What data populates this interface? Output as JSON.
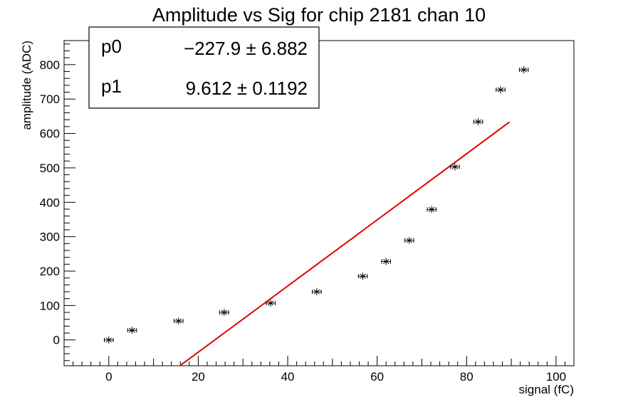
{
  "chart_data": {
    "type": "scatter",
    "title": "Amplitude vs Sig for chip 2181 chan 10",
    "xlabel": "signal (fC)",
    "ylabel": "amplitude (ADC)",
    "xlim": [
      -10,
      104
    ],
    "ylim": [
      -75,
      870
    ],
    "xticks": [
      0,
      20,
      40,
      60,
      80,
      100
    ],
    "yticks": [
      0,
      100,
      200,
      300,
      400,
      500,
      600,
      700,
      800
    ],
    "grid": false,
    "series": [
      {
        "points": [
          {
            "x": 0,
            "y": 0,
            "xerr": 1.0
          },
          {
            "x": 5.2,
            "y": 28,
            "xerr": 1.0
          },
          {
            "x": 15.6,
            "y": 55,
            "xerr": 1.0
          },
          {
            "x": 25.8,
            "y": 80,
            "xerr": 1.0
          },
          {
            "x": 36.2,
            "y": 107,
            "xerr": 1.0
          },
          {
            "x": 46.5,
            "y": 140,
            "xerr": 1.0
          },
          {
            "x": 56.8,
            "y": 185,
            "xerr": 1.0
          },
          {
            "x": 62.0,
            "y": 228,
            "xerr": 1.0
          },
          {
            "x": 67.2,
            "y": 289,
            "xerr": 1.0
          },
          {
            "x": 72.2,
            "y": 379,
            "xerr": 1.0
          },
          {
            "x": 77.4,
            "y": 503,
            "xerr": 1.0
          },
          {
            "x": 82.6,
            "y": 634,
            "xerr": 1.0
          },
          {
            "x": 87.6,
            "y": 727,
            "xerr": 1.0
          },
          {
            "x": 92.8,
            "y": 785,
            "xerr": 1.0
          }
        ],
        "color": "#000000"
      }
    ],
    "fit": {
      "color": "#e00000",
      "x_range": [
        15.9,
        89.6
      ],
      "p0": -227.9,
      "p1": 9.612
    },
    "stats_box": {
      "rows": [
        {
          "name": "p0",
          "value": "−227.9 ± 6.882"
        },
        {
          "name": "p1",
          "value": "9.612 ± 0.1192"
        }
      ]
    }
  }
}
